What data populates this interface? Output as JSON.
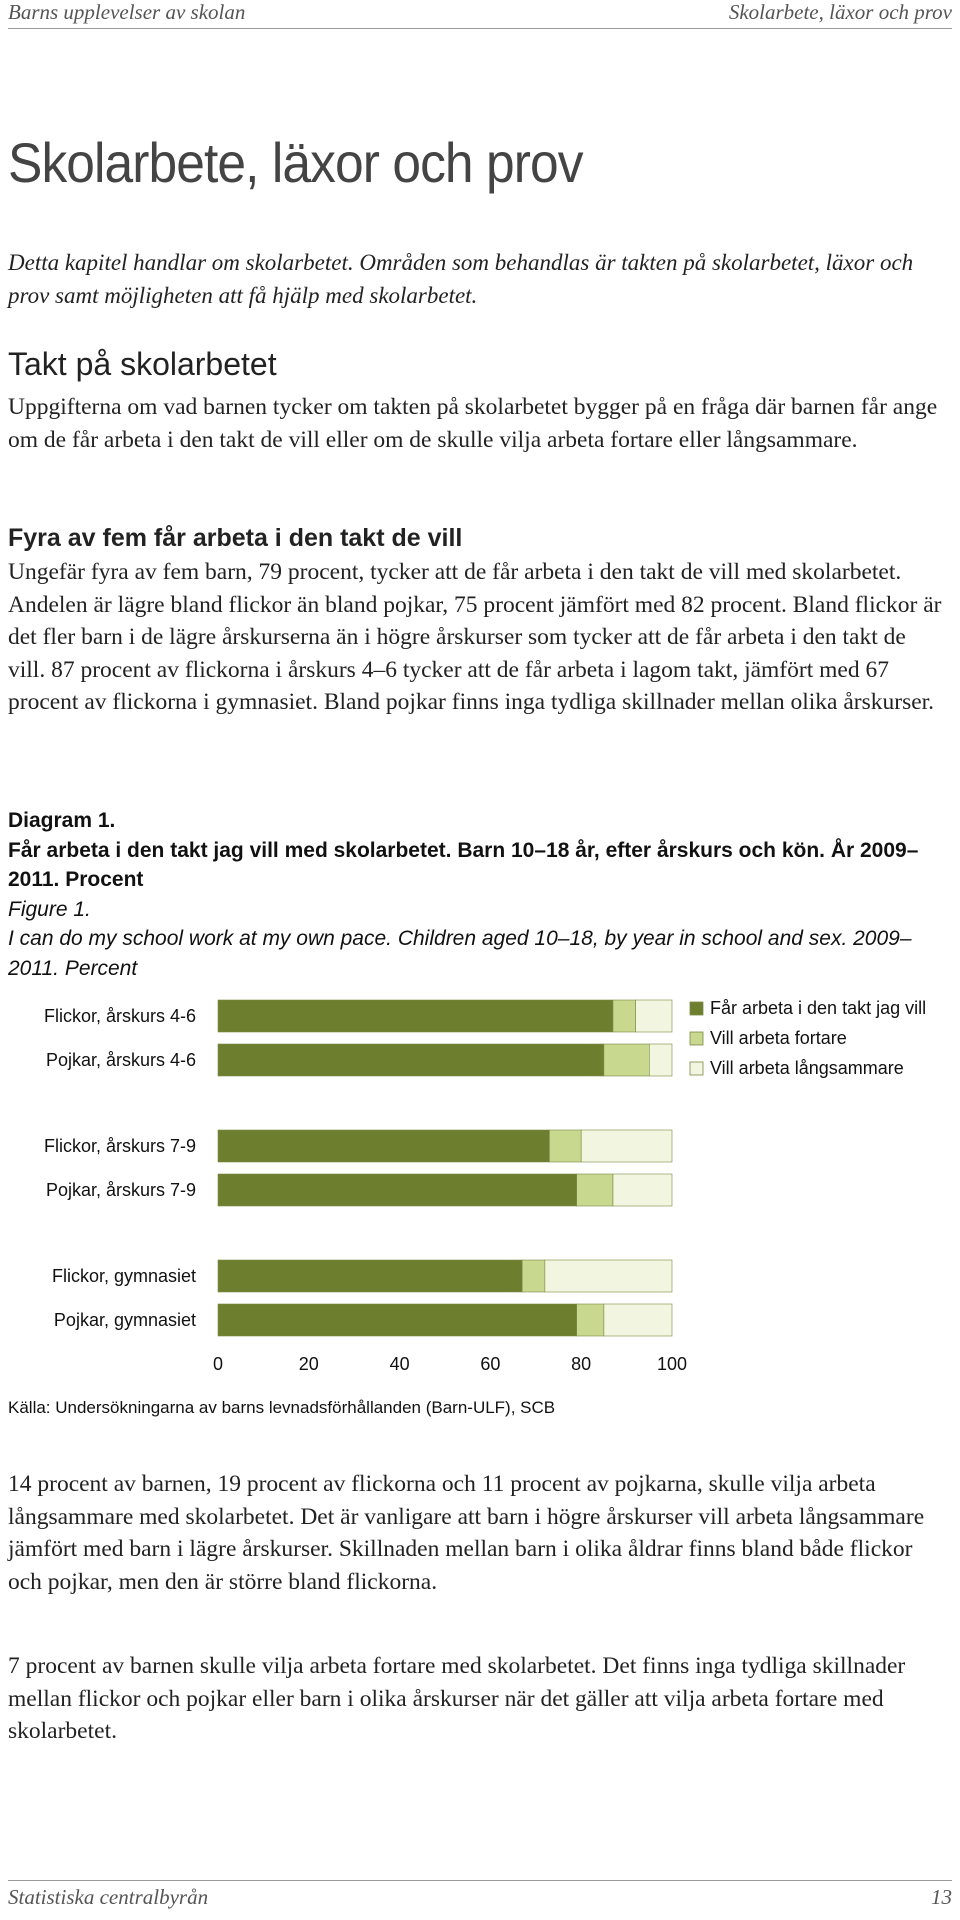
{
  "running_header": {
    "left": "Barns upplevelser av skolan",
    "right": "Skolarbete, läxor och prov"
  },
  "chapter_title": "Skolarbete, läxor och prov",
  "intro": "Detta kapitel handlar om skolarbetet. Områden som behandlas är takten på skol­arbetet, läxor och prov samt möjligheten att få hjälp med skolarbetet.",
  "section": {
    "heading": "Takt på skolarbetet",
    "paragraph": "Uppgifterna om vad barnen tycker om takten på skolarbetet bygger på en fråga där barnen får ange om de får arbeta i den takt de vill eller om de skulle vilja arbeta fortare eller långsammare."
  },
  "subsection": {
    "heading": "Fyra av fem får arbeta i den takt de vill",
    "paragraph": "Ungefär fyra av fem barn, 79 procent, tycker att de får arbeta i den takt de vill med skolarbetet. Andelen är lägre bland flickor än bland pojkar, 75 pro­cent jämfört med 82 procent. Bland flickor är det fler barn i de lägre års­kurserna än i högre årskurser som tycker att de får arbeta i den takt de vill. 87 procent av flickorna i årskurs 4–6 tycker att de får arbeta i lagom takt, jämfört med 67 procent av flickorna i gymnasiet. Bland pojkar finns inga tydliga skillnader mellan olika årskurser."
  },
  "figure": {
    "label_sv": "Diagram 1.",
    "title_sv": "Får arbeta i den takt jag vill med skolarbetet. Barn 10–18 år, efter årskurs och kön. År 2009–2011. Procent",
    "label_en": "Figure 1.",
    "title_en": "I can do my school work at my own pace. Children aged 10–18, by year in school and sex. 2009–2011. Percent"
  },
  "chart_data": {
    "type": "bar",
    "orientation": "horizontal",
    "stacked": true,
    "categories": [
      "Flickor, årskurs 4-6",
      "Pojkar, årskurs 4-6",
      "Flickor, årskurs 7-9",
      "Pojkar, årskurs 7-9",
      "Flickor, gymnasiet",
      "Pojkar, gymnasiet"
    ],
    "groups": [
      [
        0,
        1
      ],
      [
        2,
        3
      ],
      [
        4,
        5
      ]
    ],
    "series": [
      {
        "name": "Får arbeta i den takt jag vill",
        "color": "#6d7e2f",
        "values": [
          87,
          85,
          73,
          79,
          67,
          79
        ]
      },
      {
        "name": "Vill arbeta fortare",
        "color": "#c8d88e",
        "values": [
          5,
          10,
          7,
          8,
          5,
          6
        ]
      },
      {
        "name": "Vill arbeta långsammare",
        "color": "#f2f5df",
        "values": [
          8,
          5,
          20,
          13,
          28,
          15
        ]
      }
    ],
    "xlim": [
      0,
      100
    ],
    "xticks": [
      "0",
      "20",
      "40",
      "60",
      "80",
      "100"
    ],
    "legend_position": "top-right"
  },
  "source": "Källa: Undersökningarna av barns levnadsförhållanden (Barn-ULF), SCB",
  "paragraphs_after": [
    "14 procent av barnen, 19 procent av flickorna och 11 procent av pojkarna, skulle vilja arbeta långsammare med skolarbetet. Det är vanligare att barn i högre årskurser vill arbeta långsammare jämfört med barn i lägre årskur­ser. Skillnaden mellan barn i olika åldrar finns bland både flickor och pojkar, men den är större bland flickorna.",
    "7 procent av barnen skulle vilja arbeta fortare med skolarbetet. Det finns inga tydliga skillnader mellan flickor och pojkar eller barn i olika årskurser när det gäller att vilja arbeta fortare med skolarbetet."
  ],
  "footer": {
    "left": "Statistiska centralbyrån",
    "right": "13"
  }
}
